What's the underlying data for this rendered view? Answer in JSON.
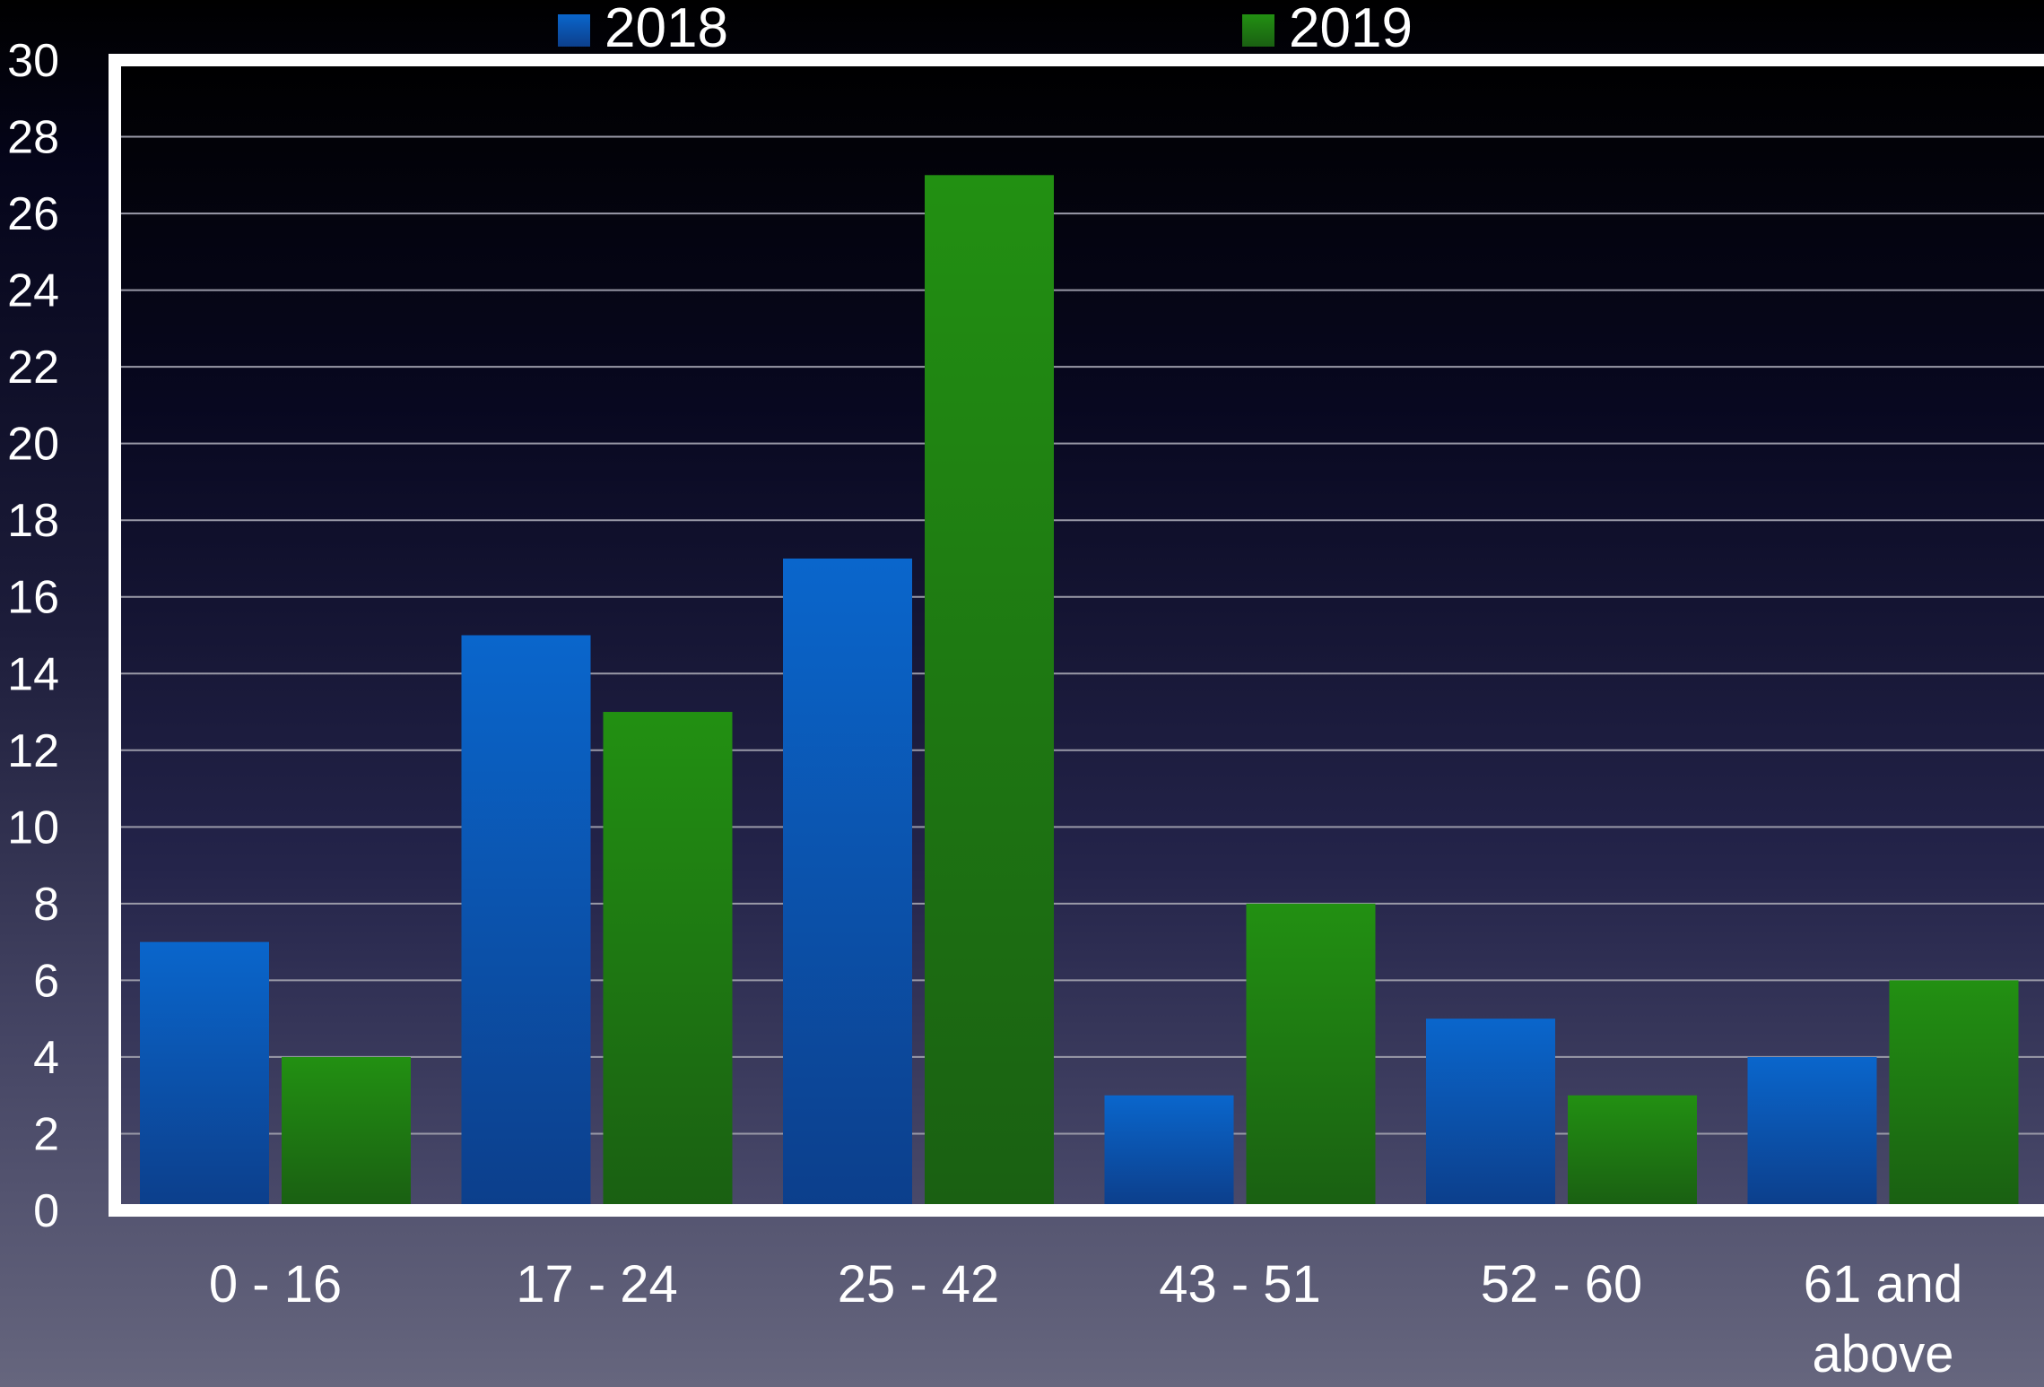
{
  "chart_data": {
    "type": "bar",
    "categories": [
      [
        "0 - 16"
      ],
      [
        "17 - 24"
      ],
      [
        "25 - 42"
      ],
      [
        "43 - 51"
      ],
      [
        "52 - 60"
      ],
      [
        "61 and",
        "above"
      ]
    ],
    "series": [
      {
        "name": "2018",
        "values": [
          7,
          15,
          17,
          3,
          5,
          4
        ],
        "color": "#0a5fc4"
      },
      {
        "name": "2019",
        "values": [
          4,
          13,
          27,
          8,
          3,
          6
        ],
        "color": "#1f8a12"
      }
    ],
    "ylim": [
      0,
      30
    ],
    "ytick_step": 2,
    "legend_position": "top",
    "grid": true,
    "frame_color": "#ffffff",
    "grid_color": "#9a9aa8",
    "plot_background": "#000000"
  }
}
